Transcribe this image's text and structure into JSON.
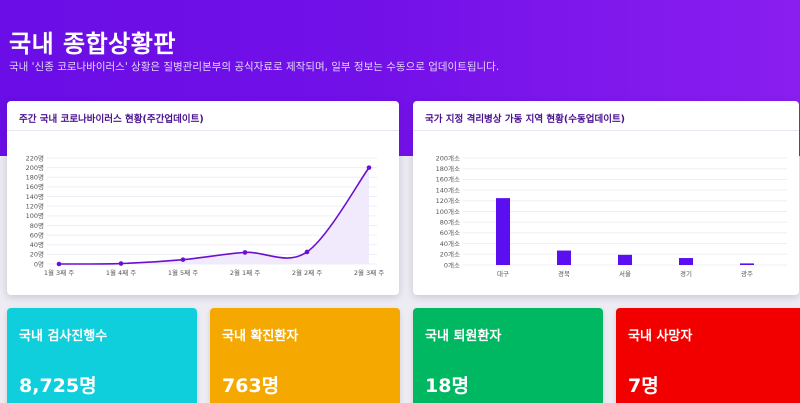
{
  "header": {
    "title": "국내 종합상황판",
    "subtitle": "국내 '신종 코로나바이러스' 상황은 질병관리본부의 공식자료로 제작되며, 일부 정보는 수동으로 업데이트됩니다."
  },
  "weekly_card": {
    "title": "주간 국내 코로나바이러스 현황(주간업데이트)"
  },
  "region_card": {
    "title": "국가 지정 격리병상 가동 지역 현황(수동업데이트)"
  },
  "stats": [
    {
      "label": "국내 검사진행수",
      "value": "8,725명",
      "color": "#0fcfdc"
    },
    {
      "label": "국내 확진환자",
      "value": "763명",
      "color": "#f5a800"
    },
    {
      "label": "국내 퇴원환자",
      "value": "18명",
      "color": "#00b862"
    },
    {
      "label": "국내 사망자",
      "value": "7명",
      "color": "#f20000"
    }
  ],
  "colors": {
    "hero_start": "#6a0de6",
    "hero_end": "#8a1ef0",
    "line": "#6a10cf",
    "bar": "#5b0ff0"
  },
  "chart_data": [
    {
      "type": "line",
      "title": "주간 국내 코로나바이러스 현황(주간업데이트)",
      "categories": [
        "1월 3째 주",
        "1월 4째 주",
        "1월 5째 주",
        "2월 1째 주",
        "2월 2째 주",
        "2월 3째 주"
      ],
      "values": [
        0,
        1,
        9,
        24,
        25,
        200
      ],
      "yticks": [
        "0명",
        "20명",
        "40명",
        "60명",
        "80명",
        "100명",
        "120명",
        "140명",
        "160명",
        "180명",
        "200명",
        "220명"
      ],
      "ylim": [
        0,
        220
      ],
      "grid": true
    },
    {
      "type": "bar",
      "title": "국가 지정 격리병상 가동 지역 현황(수동업데이트)",
      "categories": [
        "대구",
        "경북",
        "서울",
        "경기",
        "광주"
      ],
      "values": [
        125,
        27,
        19,
        13,
        3
      ],
      "yticks": [
        "0개소",
        "20개소",
        "40개소",
        "60개소",
        "80개소",
        "100개소",
        "120개소",
        "140개소",
        "160개소",
        "180개소",
        "200개소"
      ],
      "ylim": [
        0,
        200
      ],
      "grid": true
    }
  ]
}
